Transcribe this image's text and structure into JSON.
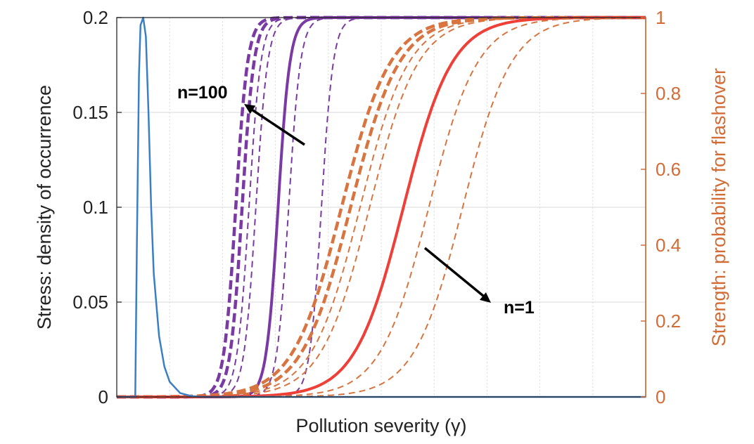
{
  "chart_data": {
    "type": "line",
    "xlabel": "Pollution severity (γ)",
    "ylabel_left": "Stress: density of occurrence",
    "ylabel_right": "Strength: probability for flashover",
    "ylim_left": [
      0,
      0.2
    ],
    "ylim_right": [
      0,
      1
    ],
    "xlim": [
      0,
      1
    ],
    "x_ticks_labeled": false,
    "yticks_left": [
      "0",
      "0.05",
      "0.1",
      "0.15",
      "0.2"
    ],
    "yticks_right": [
      "0",
      "0.2",
      "0.4",
      "0.6",
      "0.8",
      "1"
    ],
    "grid": true,
    "colors": {
      "stress": "#3a7fc4",
      "purple": "#7b3aa3",
      "orange": "#d8743f",
      "red": "#ee3f38",
      "right_axis": "#d36b35",
      "grid": "#d8d8d8"
    },
    "annotations": [
      {
        "text": "n=100",
        "points_to": "purple strength curve",
        "at": [
          0.256,
          0.765
        ]
      },
      {
        "text": "n=1",
        "points_to": "red strength curve",
        "at": [
          0.561,
          0.39
        ]
      }
    ],
    "stress_curve": {
      "name": "",
      "axis": "left",
      "x": [
        0.0,
        0.035,
        0.038,
        0.042,
        0.045,
        0.05,
        0.055,
        0.06,
        0.065,
        0.07,
        0.08,
        0.09,
        0.1,
        0.12,
        0.14,
        0.16,
        1.0
      ],
      "y": [
        0.0,
        0.0,
        0.08,
        0.17,
        0.196,
        0.2,
        0.19,
        0.15,
        0.1,
        0.065,
        0.032,
        0.016,
        0.008,
        0.002,
        0.0005,
        0.0,
        0.0
      ]
    },
    "strength_curves": [
      {
        "group": "purple",
        "style": "dashed-thick",
        "axis": "right",
        "mid": 0.225,
        "scale": 0.0112
      },
      {
        "group": "purple",
        "style": "dashed-thick",
        "axis": "right",
        "mid": 0.237,
        "scale": 0.0112
      },
      {
        "group": "purple",
        "style": "dashed",
        "axis": "right",
        "mid": 0.25,
        "scale": 0.0112
      },
      {
        "group": "purple",
        "style": "dashed",
        "axis": "right",
        "mid": 0.263,
        "scale": 0.0112
      },
      {
        "group": "purple",
        "style": "solid",
        "axis": "right",
        "mid": 0.305,
        "scale": 0.0112
      },
      {
        "group": "purple",
        "style": "dashed",
        "axis": "right",
        "mid": 0.325,
        "scale": 0.0112
      },
      {
        "group": "purple",
        "style": "dashed",
        "axis": "right",
        "mid": 0.387,
        "scale": 0.0112
      },
      {
        "group": "orange",
        "style": "dashed-thick",
        "axis": "right",
        "mid": 0.425,
        "scale": 0.046
      },
      {
        "group": "orange",
        "style": "dashed-thick",
        "axis": "right",
        "mid": 0.442,
        "scale": 0.046
      },
      {
        "group": "orange",
        "style": "dashed",
        "axis": "right",
        "mid": 0.46,
        "scale": 0.046
      },
      {
        "group": "orange",
        "style": "dashed",
        "axis": "right",
        "mid": 0.478,
        "scale": 0.046
      },
      {
        "group": "red",
        "style": "solid",
        "axis": "right",
        "mid": 0.542,
        "scale": 0.046
      },
      {
        "group": "orange",
        "style": "dashed",
        "axis": "right",
        "mid": 0.59,
        "scale": 0.046
      },
      {
        "group": "orange",
        "style": "dashed",
        "axis": "right",
        "mid": 0.654,
        "scale": 0.046
      }
    ]
  }
}
